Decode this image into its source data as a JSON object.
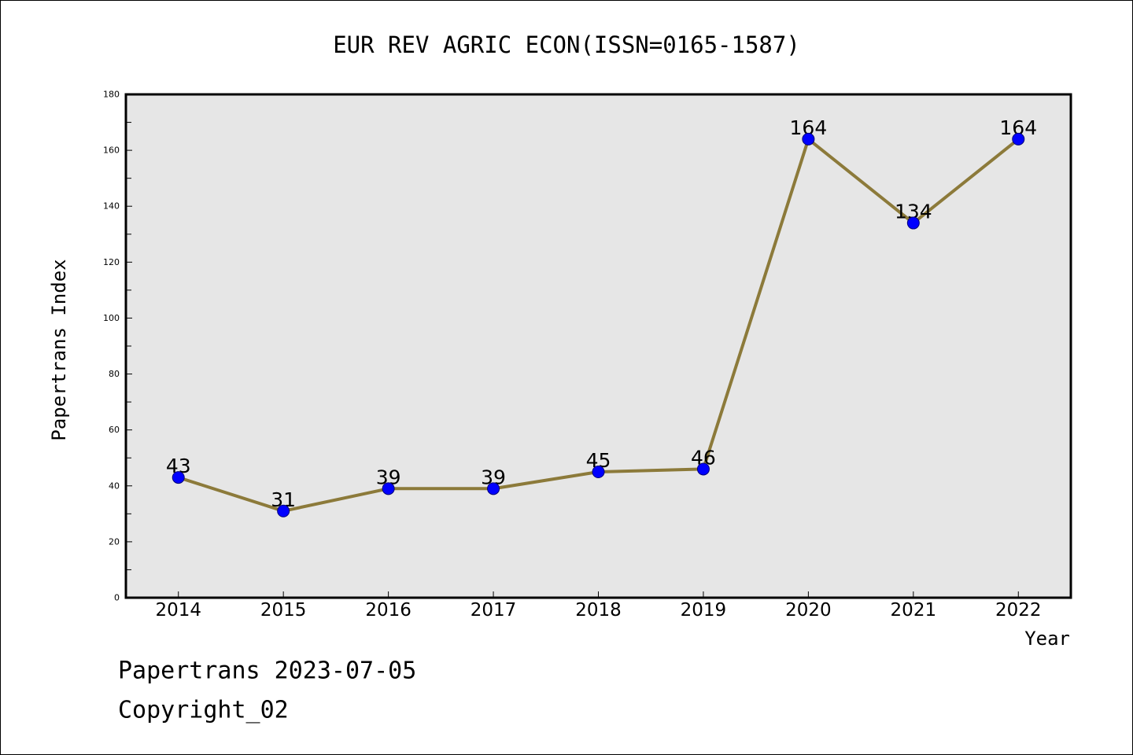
{
  "chart_data": {
    "type": "line",
    "title": "EUR REV AGRIC ECON(ISSN=0165-1587)",
    "xlabel": "Year",
    "ylabel": "Papertrans Index",
    "x": [
      2014,
      2015,
      2016,
      2017,
      2018,
      2019,
      2020,
      2021,
      2022
    ],
    "series": [
      {
        "values": [
          43,
          31,
          39,
          39,
          45,
          46,
          164,
          134,
          164
        ]
      }
    ],
    "data_labels": [
      "43",
      "31",
      "39",
      "39",
      "45",
      "46",
      "164",
      "134",
      "164"
    ],
    "xlim": [
      2013.5,
      2022.5
    ],
    "ylim": [
      0,
      180
    ],
    "yticks": [
      0,
      20,
      40,
      60,
      80,
      100,
      120,
      140,
      160,
      180
    ],
    "yminor_step": 10,
    "grid": false,
    "legend": false,
    "colors": {
      "line": "#8c7a3a",
      "marker": "#0000ff",
      "marker_edge": "#00007a",
      "plot_background": "#e6e6e6"
    }
  },
  "footer": {
    "date_line": "Papertrans 2023-07-05",
    "copyright": "Copyright_02"
  }
}
